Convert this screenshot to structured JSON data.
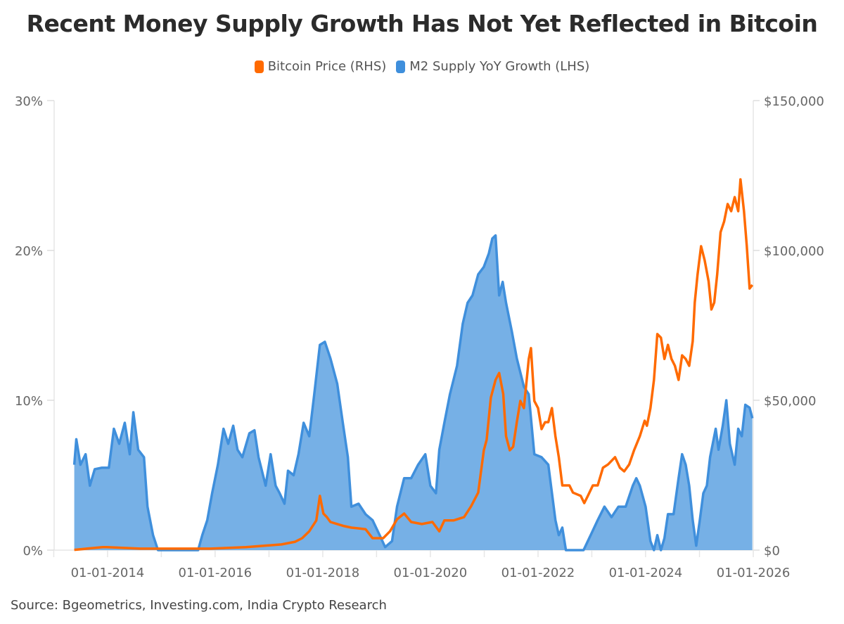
{
  "chart_data": {
    "type": "line+area",
    "title": "Recent Money Supply Growth Has Not Yet Reflected in Bitcoin",
    "source": "Source: Bgeometrics, Investing.com, India Crypto Research",
    "legend_position": "top",
    "grid": false,
    "colors": {
      "bitcoin": "#ff6a00",
      "m2": "#3f8fdc",
      "m2_fill": "#76b0e6"
    },
    "xlim": [
      "2012-12-25",
      "2026-01-01"
    ],
    "x_ticks": [
      "01-01-2014",
      "01-01-2016",
      "01-01-2018",
      "01-01-2020",
      "01-01-2022",
      "01-01-2024",
      "01-01-2026"
    ],
    "y_left": {
      "ylim": [
        0,
        30
      ],
      "ticks": [
        0,
        10,
        20,
        30
      ],
      "tick_labels": [
        "0%",
        "10%",
        "20%",
        "30%"
      ]
    },
    "y_right": {
      "ylim": [
        0,
        150000
      ],
      "ticks": [
        0,
        50000,
        100000,
        150000
      ],
      "tick_labels": [
        "$0",
        "$50,000",
        "$100,000",
        "$150,000"
      ]
    },
    "series": [
      {
        "name": "Bitcoin Price (RHS)",
        "axis": "right",
        "kind": "line",
        "points": [
          [
            "2013-05-20",
            100
          ],
          [
            "2013-11-29",
            1000
          ],
          [
            "2013-12-26",
            1000
          ],
          [
            "2014-08-11",
            500
          ],
          [
            "2015-12-02",
            500
          ],
          [
            "2016-07-28",
            1000
          ],
          [
            "2017-03-27",
            1900
          ],
          [
            "2017-06-27",
            2800
          ],
          [
            "2017-08-14",
            4000
          ],
          [
            "2017-10-01",
            6300
          ],
          [
            "2017-11-18",
            9900
          ],
          [
            "2017-12-12",
            18100
          ],
          [
            "2018-01-05",
            12200
          ],
          [
            "2018-01-29",
            11000
          ],
          [
            "2018-02-22",
            9400
          ],
          [
            "2018-04-09",
            8700
          ],
          [
            "2018-05-27",
            8000
          ],
          [
            "2018-07-14",
            7500
          ],
          [
            "2018-10-18",
            7000
          ],
          [
            "2018-12-05",
            4000
          ],
          [
            "2019-02-15",
            4000
          ],
          [
            "2019-04-02",
            6300
          ],
          [
            "2019-05-20",
            10300
          ],
          [
            "2019-07-07",
            12200
          ],
          [
            "2019-08-24",
            9400
          ],
          [
            "2019-11-04",
            8700
          ],
          [
            "2020-01-15",
            9400
          ],
          [
            "2020-03-02",
            6300
          ],
          [
            "2020-04-05",
            9900
          ],
          [
            "2020-06-06",
            9900
          ],
          [
            "2020-08-17",
            11000
          ],
          [
            "2020-10-03",
            14600
          ],
          [
            "2020-11-21",
            19200
          ],
          [
            "2020-12-29",
            33300
          ],
          [
            "2021-01-17",
            36800
          ],
          [
            "2021-02-15",
            50900
          ],
          [
            "2021-03-19",
            56800
          ],
          [
            "2021-04-12",
            59100
          ],
          [
            "2021-05-10",
            52100
          ],
          [
            "2021-05-29",
            38000
          ],
          [
            "2021-06-23",
            33300
          ],
          [
            "2021-07-16",
            34500
          ],
          [
            "2021-08-10",
            42700
          ],
          [
            "2021-09-03",
            49800
          ],
          [
            "2021-09-27",
            47400
          ],
          [
            "2021-10-30",
            63800
          ],
          [
            "2021-11-14",
            67400
          ],
          [
            "2021-12-07",
            49800
          ],
          [
            "2022-01-01",
            47400
          ],
          [
            "2022-01-25",
            40400
          ],
          [
            "2022-02-18",
            42700
          ],
          [
            "2022-03-12",
            42700
          ],
          [
            "2022-04-05",
            47400
          ],
          [
            "2022-04-29",
            38000
          ],
          [
            "2022-05-22",
            31000
          ],
          [
            "2022-06-15",
            21600
          ],
          [
            "2022-08-02",
            21600
          ],
          [
            "2022-08-26",
            19200
          ],
          [
            "2022-10-18",
            18100
          ],
          [
            "2022-11-11",
            15700
          ],
          [
            "2022-12-05",
            18100
          ],
          [
            "2023-01-08",
            21600
          ],
          [
            "2023-02-10",
            21600
          ],
          [
            "2023-03-18",
            27500
          ],
          [
            "2023-04-21",
            28600
          ],
          [
            "2023-06-08",
            31000
          ],
          [
            "2023-07-11",
            27500
          ],
          [
            "2023-08-09",
            26300
          ],
          [
            "2023-09-12",
            28600
          ],
          [
            "2023-10-15",
            33300
          ],
          [
            "2023-11-23",
            38000
          ],
          [
            "2023-12-26",
            43200
          ],
          [
            "2024-01-10",
            41500
          ],
          [
            "2024-02-03",
            47400
          ],
          [
            "2024-02-27",
            56800
          ],
          [
            "2024-03-21",
            72100
          ],
          [
            "2024-04-14",
            70900
          ],
          [
            "2024-05-08",
            63800
          ],
          [
            "2024-06-01",
            68500
          ],
          [
            "2024-06-25",
            63800
          ],
          [
            "2024-07-18",
            61500
          ],
          [
            "2024-08-12",
            56800
          ],
          [
            "2024-09-05",
            65000
          ],
          [
            "2024-09-29",
            63800
          ],
          [
            "2024-10-23",
            61500
          ],
          [
            "2024-11-16",
            69700
          ],
          [
            "2024-11-30",
            82600
          ],
          [
            "2024-12-19",
            92000
          ],
          [
            "2025-01-12",
            101400
          ],
          [
            "2025-02-05",
            96700
          ],
          [
            "2025-03-04",
            89700
          ],
          [
            "2025-03-23",
            80300
          ],
          [
            "2025-04-11",
            82600
          ],
          [
            "2025-05-01",
            92000
          ],
          [
            "2025-05-24",
            106100
          ],
          [
            "2025-06-17",
            109600
          ],
          [
            "2025-07-11",
            115500
          ],
          [
            "2025-08-04",
            113100
          ],
          [
            "2025-08-28",
            117800
          ],
          [
            "2025-09-21",
            113100
          ],
          [
            "2025-10-06",
            123700
          ],
          [
            "2025-10-30",
            113100
          ],
          [
            "2025-11-18",
            101400
          ],
          [
            "2025-12-07",
            87300
          ],
          [
            "2025-12-26",
            88500
          ]
        ]
      },
      {
        "name": "M2 Supply YoY Growth (LHS)",
        "axis": "left",
        "kind": "area",
        "points": [
          [
            "2013-05-20",
            5.7
          ],
          [
            "2013-06-03",
            7.4
          ],
          [
            "2013-07-01",
            5.7
          ],
          [
            "2013-08-05",
            6.4
          ],
          [
            "2013-09-03",
            4.3
          ],
          [
            "2013-10-06",
            5.4
          ],
          [
            "2013-11-23",
            5.5
          ],
          [
            "2014-01-10",
            5.5
          ],
          [
            "2014-02-13",
            8.1
          ],
          [
            "2014-03-21",
            7.1
          ],
          [
            "2014-04-28",
            8.5
          ],
          [
            "2014-06-01",
            6.4
          ],
          [
            "2014-06-25",
            9.2
          ],
          [
            "2014-07-28",
            6.7
          ],
          [
            "2014-09-05",
            6.2
          ],
          [
            "2014-09-29",
            2.9
          ],
          [
            "2014-11-06",
            1.0
          ],
          [
            "2014-12-09",
            0
          ],
          [
            "2015-09-08",
            0
          ],
          [
            "2015-10-06",
            1.0
          ],
          [
            "2015-11-09",
            2.0
          ],
          [
            "2015-12-12",
            3.8
          ],
          [
            "2016-01-20",
            5.7
          ],
          [
            "2016-02-27",
            8.1
          ],
          [
            "2016-03-30",
            7.1
          ],
          [
            "2016-05-03",
            8.3
          ],
          [
            "2016-06-01",
            6.7
          ],
          [
            "2016-07-04",
            6.2
          ],
          [
            "2016-08-21",
            7.8
          ],
          [
            "2016-09-24",
            8.0
          ],
          [
            "2016-10-22",
            6.2
          ],
          [
            "2016-12-09",
            4.3
          ],
          [
            "2017-01-12",
            6.4
          ],
          [
            "2017-02-15",
            4.3
          ],
          [
            "2017-03-14",
            3.8
          ],
          [
            "2017-04-16",
            3.1
          ],
          [
            "2017-05-10",
            5.3
          ],
          [
            "2017-06-17",
            5.0
          ],
          [
            "2017-07-20",
            6.4
          ],
          [
            "2017-08-24",
            8.5
          ],
          [
            "2017-10-01",
            7.6
          ],
          [
            "2017-11-04",
            10.4
          ],
          [
            "2017-12-12",
            13.7
          ],
          [
            "2018-01-15",
            13.9
          ],
          [
            "2018-02-22",
            12.8
          ],
          [
            "2018-04-09",
            11.1
          ],
          [
            "2018-05-17",
            8.5
          ],
          [
            "2018-06-20",
            6.2
          ],
          [
            "2018-07-14",
            2.9
          ],
          [
            "2018-09-01",
            3.1
          ],
          [
            "2018-10-18",
            2.4
          ],
          [
            "2018-12-05",
            2.0
          ],
          [
            "2019-01-22",
            1.0
          ],
          [
            "2019-02-28",
            0.2
          ],
          [
            "2019-04-16",
            0.6
          ],
          [
            "2019-05-20",
            2.9
          ],
          [
            "2019-07-07",
            4.8
          ],
          [
            "2019-08-24",
            4.8
          ],
          [
            "2019-10-10",
            5.7
          ],
          [
            "2019-11-28",
            6.4
          ],
          [
            "2020-01-01",
            4.3
          ],
          [
            "2020-02-08",
            3.8
          ],
          [
            "2020-03-02",
            6.7
          ],
          [
            "2020-04-05",
            8.5
          ],
          [
            "2020-05-13",
            10.4
          ],
          [
            "2020-06-30",
            12.3
          ],
          [
            "2020-08-08",
            15.1
          ],
          [
            "2020-09-10",
            16.5
          ],
          [
            "2020-10-13",
            17.0
          ],
          [
            "2020-11-21",
            18.4
          ],
          [
            "2020-12-29",
            18.9
          ],
          [
            "2021-02-01",
            19.8
          ],
          [
            "2021-02-25",
            20.8
          ],
          [
            "2021-03-19",
            21.0
          ],
          [
            "2021-04-12",
            17.0
          ],
          [
            "2021-05-06",
            17.9
          ],
          [
            "2021-05-29",
            16.5
          ],
          [
            "2021-07-07",
            14.6
          ],
          [
            "2021-08-10",
            12.8
          ],
          [
            "2021-09-27",
            10.9
          ],
          [
            "2021-10-30",
            10.4
          ],
          [
            "2021-12-07",
            6.4
          ],
          [
            "2022-01-25",
            6.2
          ],
          [
            "2022-03-12",
            5.7
          ],
          [
            "2022-04-29",
            2.0
          ],
          [
            "2022-05-22",
            1.0
          ],
          [
            "2022-06-15",
            1.5
          ],
          [
            "2022-07-09",
            0
          ],
          [
            "2022-08-26",
            0
          ],
          [
            "2022-11-06",
            0
          ],
          [
            "2022-12-24",
            1.0
          ],
          [
            "2023-02-10",
            2.0
          ],
          [
            "2023-03-28",
            2.9
          ],
          [
            "2023-05-15",
            2.2
          ],
          [
            "2023-07-01",
            2.9
          ],
          [
            "2023-08-19",
            2.9
          ],
          [
            "2023-10-06",
            4.3
          ],
          [
            "2023-10-30",
            4.8
          ],
          [
            "2023-11-23",
            4.3
          ],
          [
            "2024-01-01",
            2.9
          ],
          [
            "2024-02-03",
            0.6
          ],
          [
            "2024-02-27",
            0
          ],
          [
            "2024-03-21",
            1.0
          ],
          [
            "2024-04-14",
            0
          ],
          [
            "2024-05-08",
            0.8
          ],
          [
            "2024-06-01",
            2.4
          ],
          [
            "2024-07-09",
            2.4
          ],
          [
            "2024-08-12",
            4.8
          ],
          [
            "2024-09-05",
            6.4
          ],
          [
            "2024-09-29",
            5.7
          ],
          [
            "2024-10-23",
            4.3
          ],
          [
            "2024-11-16",
            2.0
          ],
          [
            "2024-12-10",
            0.3
          ],
          [
            "2025-01-03",
            2.0
          ],
          [
            "2025-01-27",
            3.8
          ],
          [
            "2025-02-20",
            4.3
          ],
          [
            "2025-03-14",
            6.2
          ],
          [
            "2025-04-21",
            8.1
          ],
          [
            "2025-05-10",
            6.7
          ],
          [
            "2025-06-08",
            8.3
          ],
          [
            "2025-07-02",
            10.0
          ],
          [
            "2025-07-26",
            7.1
          ],
          [
            "2025-08-28",
            5.7
          ],
          [
            "2025-09-21",
            8.1
          ],
          [
            "2025-10-15",
            7.6
          ],
          [
            "2025-11-08",
            9.7
          ],
          [
            "2025-12-07",
            9.5
          ],
          [
            "2025-12-26",
            8.8
          ]
        ]
      }
    ]
  }
}
